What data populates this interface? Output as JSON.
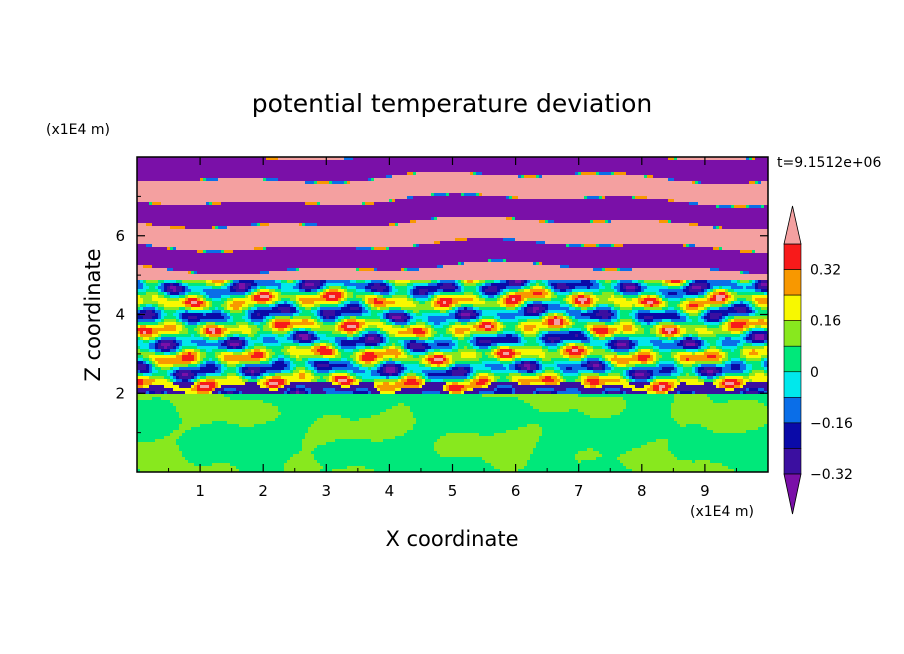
{
  "chart_data": {
    "type": "heatmap",
    "title": "potential temperature deviation",
    "xlabel": "X coordinate",
    "ylabel": "Z coordinate",
    "x_unit": "(x1E4 m)",
    "y_unit": "(x1E4 m)",
    "time_label": "t=9.1512e+06",
    "xlim": [
      0,
      10
    ],
    "ylim": [
      0,
      8
    ],
    "x_ticks": [
      "1",
      "2",
      "3",
      "4",
      "5",
      "6",
      "7",
      "8",
      "9"
    ],
    "y_ticks": [
      "2",
      "4",
      "6"
    ],
    "colorbar": {
      "labels": [
        "0.32",
        "0.16",
        "0",
        "−0.16",
        "−0.32"
      ],
      "levels": [
        -0.4,
        -0.32,
        -0.24,
        -0.16,
        -0.08,
        0,
        0.08,
        0.16,
        0.24,
        0.32,
        0.4
      ],
      "colors": [
        "#7a10a8",
        "#3b0fa0",
        "#0a0aa8",
        "#0a6ee8",
        "#00e8ec",
        "#00e87a",
        "#88e81e",
        "#f8f800",
        "#f89800",
        "#f81a1a",
        "#f4a0a0"
      ],
      "extend": "both"
    },
    "regions": [
      {
        "z_range": [
          0,
          2
        ],
        "description_values": "mostly 0 to 0.08 (green shades)"
      },
      {
        "z_range": [
          2,
          5
        ],
        "description_values": "mixed -0.4 to 0.4 (all colors)"
      },
      {
        "z_range": [
          5,
          8
        ],
        "description_values": "alternating bands below -0.32 and above 0.4"
      }
    ]
  }
}
